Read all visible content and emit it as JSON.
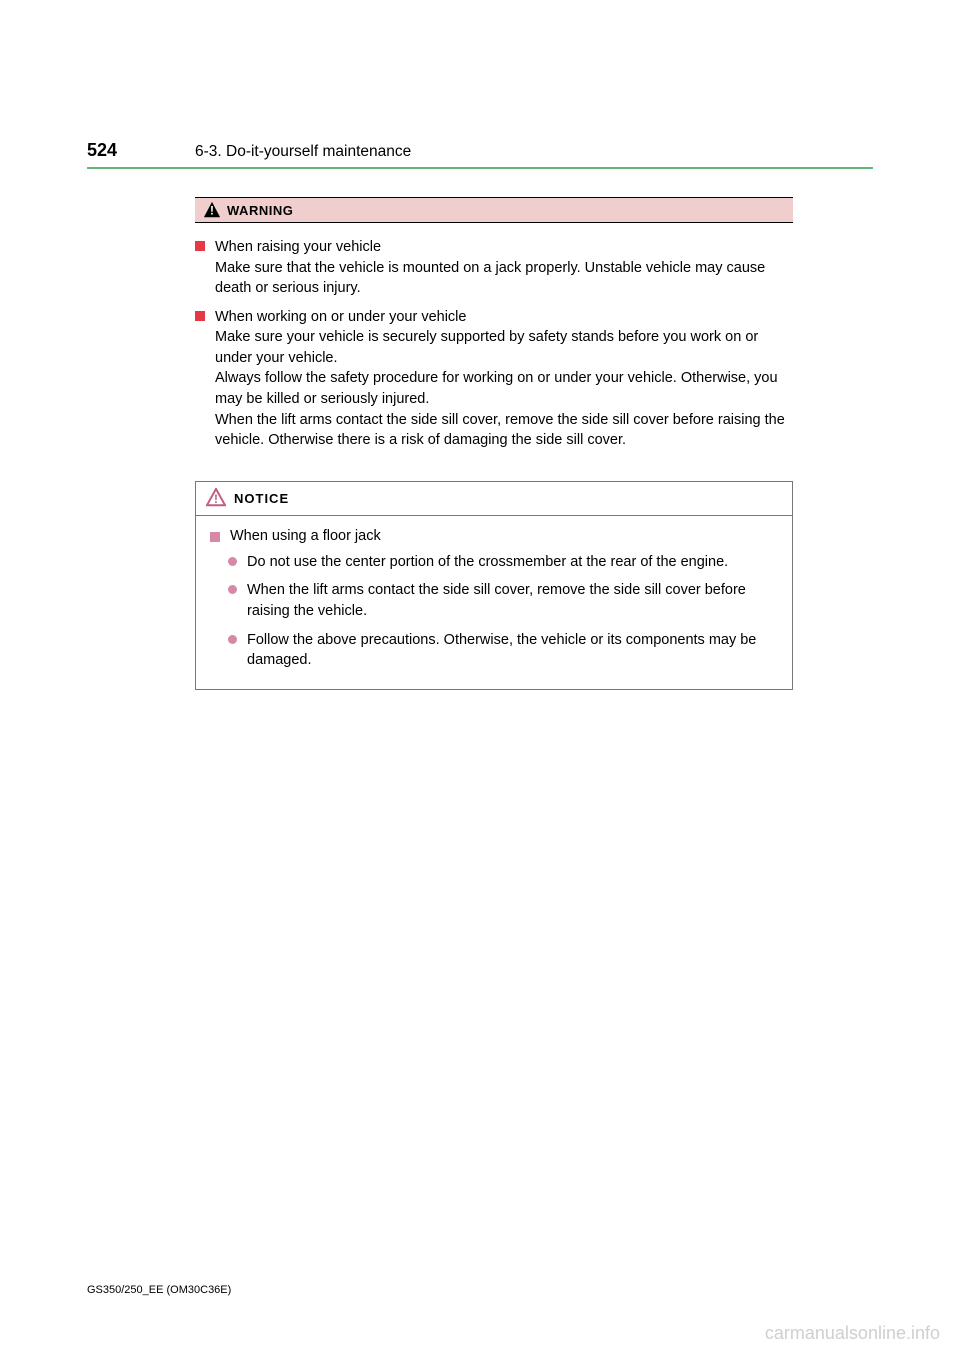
{
  "header": {
    "page_number": "524",
    "chapter": "6-3. Do-it-yourself maintenance"
  },
  "colors": {
    "accent_line": "#5fb878",
    "warning_bg": "#f0cece",
    "red_square": "#e63946",
    "pink_square": "#d688a8",
    "pink_dot": "#d688a8",
    "box_border": "#777777",
    "watermark": "#cfcfcf"
  },
  "warning": {
    "label": "WARNING",
    "items": [
      "When raising your vehicle\nMake sure that the vehicle is mounted on a jack properly. Unstable vehicle may cause death or serious injury.",
      "When working on or under your vehicle\nMake sure your vehicle is securely supported by safety stands before you work on or under your vehicle.\nAlways follow the safety procedure for working on or under your vehicle. Otherwise, you may be killed or seriously injured.\nWhen the lift arms contact the side sill cover, remove the side sill cover before raising the vehicle. Otherwise there is a risk of damaging the side sill cover."
    ]
  },
  "notice": {
    "label": "NOTICE",
    "title": "When using a floor jack",
    "bullets": [
      "Do not use the center portion of the crossmember at the rear of the engine.",
      "When the lift arms contact the side sill cover, remove the side sill cover before raising the vehicle.",
      "Follow the above precautions. Otherwise, the vehicle or its components may be damaged."
    ]
  },
  "footer": "GS350/250_EE (OM30C36E)",
  "watermark": "carmanualsonline.info"
}
